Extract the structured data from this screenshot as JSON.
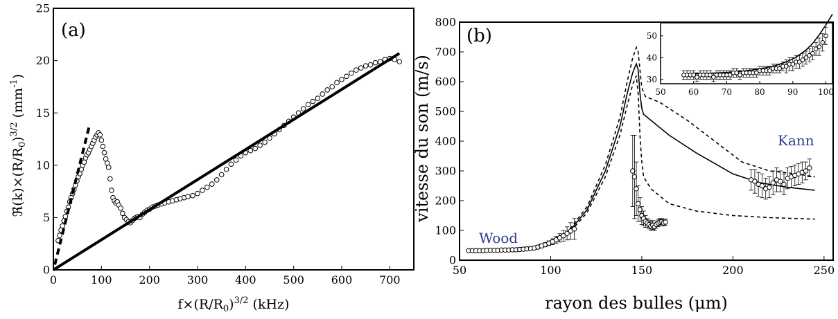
{
  "chart_data": [
    {
      "type": "scatter",
      "panel_label": "(a)",
      "xlabel": "f×(R/R0)3/2    (kHz)",
      "ylabel": "ℜ(k)×(R/R0)3/2    (mm-1)",
      "xlim": [
        0,
        750
      ],
      "ylim": [
        0,
        25
      ],
      "xticks": [
        "0",
        "100",
        "200",
        "300",
        "400",
        "500",
        "600",
        "700"
      ],
      "yticks": [
        "0",
        "5",
        "10",
        "15",
        "20",
        "25"
      ],
      "grid": false,
      "series": [
        {
          "style": "open-circle",
          "x": [
            10,
            13,
            16,
            19,
            22,
            25,
            28,
            31,
            34,
            37,
            40,
            43,
            46,
            49,
            52,
            55,
            58,
            61,
            64,
            67,
            70,
            73,
            76,
            79,
            82,
            85,
            88,
            91,
            94,
            97,
            100,
            103,
            106,
            109,
            112,
            115,
            118,
            121,
            124,
            127,
            130,
            133,
            136,
            140,
            144,
            148,
            152,
            156,
            160,
            164,
            168,
            172,
            176,
            180,
            185,
            190,
            195,
            200,
            206,
            212,
            218,
            225,
            232,
            240,
            248,
            256,
            264,
            272,
            280,
            290,
            300,
            310,
            320,
            330,
            340,
            350,
            360,
            370,
            380,
            390,
            400,
            410,
            420,
            430,
            440,
            450,
            460,
            470,
            480,
            490,
            500,
            510,
            520,
            530,
            540,
            550,
            560,
            570,
            580,
            590,
            600,
            610,
            620,
            630,
            640,
            650,
            660,
            670,
            680,
            690,
            700,
            710,
            720
          ],
          "y": [
            2.8,
            3.3,
            3.8,
            4.2,
            4.7,
            5.1,
            5.6,
            6.0,
            6.5,
            6.9,
            7.3,
            7.7,
            8.1,
            8.5,
            8.9,
            9.2,
            9.6,
            10.0,
            10.3,
            10.7,
            11.0,
            11.2,
            11.5,
            11.8,
            12.1,
            12.4,
            12.7,
            12.9,
            13.1,
            12.9,
            12.4,
            11.8,
            11.2,
            10.6,
            10.2,
            9.8,
            8.7,
            7.6,
            6.9,
            6.6,
            6.4,
            6.5,
            6.2,
            5.9,
            5.4,
            5.0,
            4.8,
            4.6,
            4.5,
            4.7,
            4.9,
            5.0,
            5.1,
            5.0,
            5.3,
            5.5,
            5.7,
            5.8,
            6.0,
            6.1,
            6.2,
            6.3,
            6.4,
            6.5,
            6.6,
            6.7,
            6.8,
            6.9,
            7.0,
            7.1,
            7.3,
            7.6,
            7.9,
            8.2,
            8.6,
            9.1,
            9.6,
            10.1,
            10.5,
            10.9,
            11.2,
            11.4,
            11.6,
            11.9,
            12.2,
            12.6,
            13.0,
            13.4,
            13.8,
            14.2,
            14.6,
            15.0,
            15.4,
            15.8,
            16.1,
            16.4,
            16.8,
            17.2,
            17.5,
            17.9,
            18.2,
            18.5,
            18.8,
            19.1,
            19.3,
            19.5,
            19.6,
            19.8,
            19.9,
            20.1,
            20.2,
            20.1,
            19.9
          ]
        },
        {
          "style": "solid-line",
          "x": [
            0,
            720
          ],
          "y": [
            0,
            20.7
          ]
        },
        {
          "style": "dashed-line",
          "x": [
            3,
            75
          ],
          "y": [
            0.5,
            13.8
          ]
        }
      ]
    },
    {
      "type": "line",
      "panel_label": "(b)",
      "xlabel": "rayon des bulles (μm)",
      "ylabel": "vitesse du son (m/s)",
      "xlim": [
        50,
        255
      ],
      "ylim": [
        0,
        800
      ],
      "xticks": [
        "50",
        "100",
        "150",
        "200",
        "250"
      ],
      "yticks": [
        "0",
        "100",
        "200",
        "300",
        "400",
        "500",
        "600",
        "700",
        "800"
      ],
      "grid": false,
      "annotations": [
        "Wood",
        "Kann"
      ],
      "series": [
        {
          "style": "solid-line",
          "x": [
            55,
            70,
            80,
            90,
            100,
            110,
            120,
            130,
            138,
            142,
            145,
            147,
            148,
            149,
            150,
            151,
            155,
            165,
            180,
            200,
            215,
            230,
            245
          ],
          "y": [
            33,
            35,
            40,
            45,
            60,
            95,
            170,
            300,
            450,
            560,
            630,
            660,
            640,
            560,
            510,
            490,
            470,
            420,
            360,
            290,
            260,
            245,
            235
          ]
        },
        {
          "style": "dashed-line",
          "x": [
            55,
            70,
            80,
            90,
            100,
            110,
            120,
            130,
            138,
            142,
            145,
            147,
            148,
            149,
            150,
            152,
            160,
            175,
            190,
            205,
            220,
            235,
            245
          ],
          "y": [
            33,
            35,
            40,
            45,
            62,
            100,
            180,
            320,
            480,
            600,
            680,
            715,
            700,
            640,
            580,
            550,
            530,
            470,
            400,
            330,
            300,
            290,
            280
          ]
        },
        {
          "style": "dashed-line",
          "x": [
            55,
            70,
            80,
            90,
            100,
            110,
            120,
            130,
            138,
            142,
            145,
            147,
            148,
            149,
            150,
            151,
            155,
            165,
            180,
            200,
            220,
            245
          ],
          "y": [
            33,
            35,
            38,
            44,
            58,
            90,
            160,
            280,
            420,
            520,
            590,
            620,
            560,
            420,
            330,
            280,
            240,
            190,
            165,
            150,
            143,
            138
          ]
        },
        {
          "style": "open-circle-errorbars",
          "x": [
            55,
            57,
            59,
            61,
            63,
            65,
            67,
            69,
            71,
            73,
            75,
            77,
            79,
            81,
            83,
            85,
            87,
            89,
            91,
            93,
            95,
            97,
            99,
            101,
            103,
            105,
            107,
            109,
            111,
            113,
            145,
            146,
            147,
            148,
            149,
            150,
            151,
            152,
            153,
            154,
            155,
            156,
            157,
            158,
            159,
            160,
            161,
            162,
            163,
            210,
            212,
            214,
            216,
            218,
            220,
            222,
            224,
            226,
            228,
            230,
            232,
            234,
            236,
            238,
            240,
            242
          ],
          "y": [
            32,
            32,
            32,
            32,
            32,
            33,
            33,
            33,
            33,
            34,
            34,
            34,
            35,
            35,
            36,
            37,
            38,
            39,
            41,
            44,
            48,
            52,
            57,
            62,
            68,
            75,
            82,
            90,
            98,
            105,
            300,
            280,
            240,
            190,
            170,
            150,
            140,
            130,
            125,
            120,
            115,
            118,
            112,
            120,
            125,
            128,
            130,
            125,
            128,
            270,
            265,
            255,
            250,
            240,
            245,
            260,
            270,
            265,
            255,
            275,
            280,
            285,
            290,
            295,
            300,
            310
          ],
          "err": [
            4,
            4,
            4,
            4,
            4,
            4,
            4,
            4,
            4,
            4,
            4,
            4,
            4,
            4,
            4,
            4,
            4,
            4,
            5,
            5,
            6,
            7,
            8,
            10,
            12,
            14,
            18,
            22,
            28,
            35,
            120,
            140,
            90,
            60,
            40,
            30,
            25,
            20,
            15,
            15,
            15,
            15,
            12,
            12,
            12,
            12,
            10,
            10,
            10,
            35,
            40,
            40,
            40,
            35,
            35,
            40,
            40,
            35,
            35,
            35,
            35,
            35,
            35,
            35,
            30,
            30
          ]
        }
      ]
    },
    {
      "type": "line",
      "panel_label": "",
      "inset_of": "(b)",
      "xlim": [
        50,
        102
      ],
      "ylim": [
        28,
        56
      ],
      "xticks": [
        "50",
        "60",
        "70",
        "80",
        "90",
        "100"
      ],
      "yticks": [
        "30",
        "40",
        "50"
      ],
      "series": [
        {
          "style": "solid-line",
          "x": [
            57,
            60,
            65,
            70,
            75,
            80,
            84,
            88,
            91,
            94,
            96,
            98,
            100,
            102
          ],
          "y": [
            32.5,
            32.6,
            32.8,
            33.2,
            33.8,
            34.8,
            36.0,
            38.0,
            40.2,
            43.5,
            46.5,
            50.5,
            55,
            60
          ]
        },
        {
          "style": "open-circle-errorbars",
          "x": [
            57,
            58,
            59,
            60,
            61,
            62,
            63,
            64,
            65,
            66,
            67,
            68,
            69,
            70,
            71,
            72,
            73,
            74,
            75,
            76,
            77,
            78,
            79,
            80,
            81,
            82,
            83,
            84,
            85,
            86,
            87,
            88,
            89,
            90,
            91,
            92,
            93,
            94,
            95,
            96,
            97,
            98,
            99,
            100
          ],
          "y": [
            32,
            32,
            32,
            32,
            31,
            32,
            32,
            32,
            32,
            31,
            32,
            32,
            32,
            32,
            32,
            33,
            33,
            32,
            33,
            33,
            33,
            33,
            33,
            34,
            34,
            34,
            34,
            35,
            35,
            35,
            36,
            36,
            37,
            37,
            38,
            38,
            39,
            40,
            41,
            42,
            44,
            45,
            47,
            50
          ],
          "err": [
            2,
            2,
            2,
            2,
            2,
            2,
            2,
            2,
            2,
            2,
            2,
            2,
            2,
            2,
            2,
            2,
            2,
            2,
            2,
            2,
            2,
            2,
            2,
            2,
            2,
            2,
            2,
            2,
            2,
            2,
            2,
            3,
            3,
            3,
            3,
            3,
            3,
            3,
            3,
            3,
            3,
            4,
            4,
            4
          ]
        }
      ]
    }
  ]
}
